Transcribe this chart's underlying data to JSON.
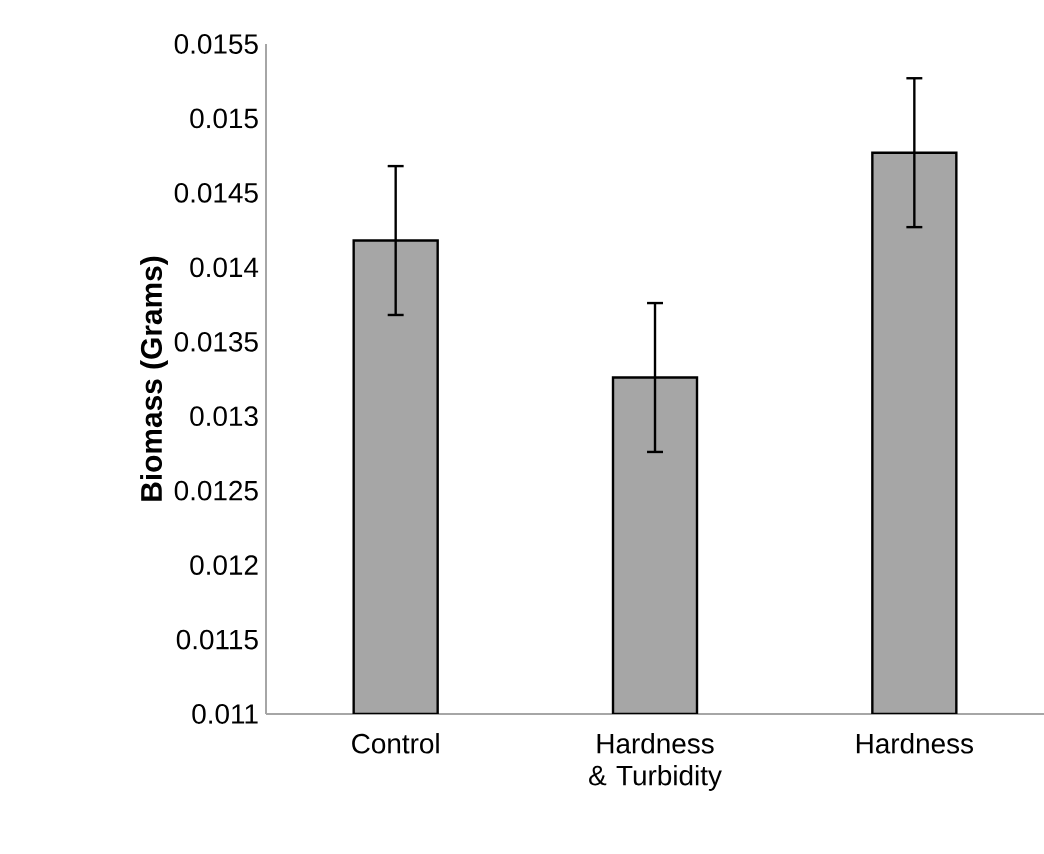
{
  "chart_data": {
    "type": "bar",
    "ylabel": "Biomass (Grams)",
    "categories": [
      "Control",
      "Hardness & Turbidity",
      "Hardness"
    ],
    "values": [
      0.01418,
      0.01326,
      0.01477
    ],
    "errors": [
      0.0005,
      0.0005,
      0.0005
    ],
    "color": "#a6a6a6",
    "ylim": [
      0.011,
      0.0155
    ],
    "yticks": [
      0.011,
      0.0115,
      0.012,
      0.0125,
      0.013,
      0.0135,
      0.014,
      0.0145,
      0.015,
      0.0155
    ],
    "grid": false
  }
}
